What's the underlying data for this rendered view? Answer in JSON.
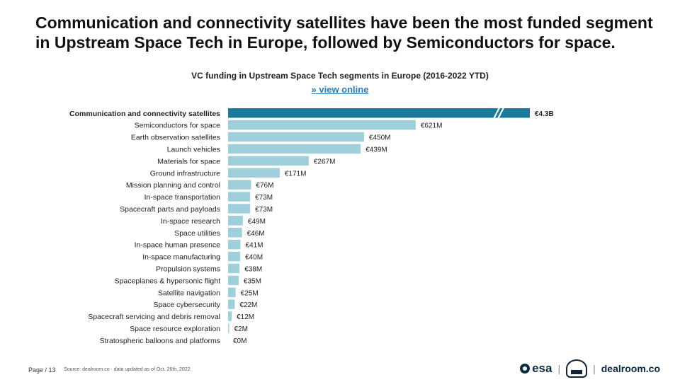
{
  "headline": {
    "line1": "Communication and connectivity satellites have been the most funded segment",
    "line2": "in Upstream Space Tech in Europe, followed by Semiconductors for space."
  },
  "chart_header": {
    "title": "VC funding in Upstream Space Tech segments in Europe (2016-2022 YTD)",
    "link": "» view online"
  },
  "chart_data": {
    "type": "bar",
    "orientation": "horizontal",
    "unit": "€M",
    "axis_break": true,
    "categories": [
      "Communication and connectivity satellites",
      "Semiconductors for space",
      "Earth observation satellites",
      "Launch vehicles",
      "Materials for space",
      "Ground infrastructure",
      "Mission planning and control",
      "In-space transportation",
      "Spacecraft parts and payloads",
      "In-space research",
      "Space utilities",
      "In-space human presence",
      "In-space manufacturing",
      "Propulsion systems",
      "Spaceplanes & hypersonic flight",
      "Satellite navigation",
      "Space cybersecurity",
      "Spacecraft servicing and debris removal",
      "Space resource exploration",
      "Stratospheric balloons and platforms"
    ],
    "values": [
      4300,
      621,
      450,
      439,
      267,
      171,
      76,
      73,
      73,
      49,
      46,
      41,
      40,
      38,
      35,
      25,
      22,
      12,
      2,
      0
    ],
    "labels": [
      "€4.3B",
      "€621M",
      "€450M",
      "€439M",
      "€267M",
      "€171M",
      "€76M",
      "€73M",
      "€73M",
      "€49M",
      "€46M",
      "€41M",
      "€40M",
      "€38M",
      "€35M",
      "€25M",
      "€22M",
      "€12M",
      "€2M",
      "€0M"
    ],
    "highlight_index": 0,
    "colors": {
      "highlight": "#1b7a99",
      "default": "#9fcfdb"
    }
  },
  "footer": {
    "page": "Page / 13",
    "source": "Source: dealroom.co · data updated as of Oct. 26th, 2022",
    "logo_esa": "esa",
    "separator": "|",
    "logo_dealroom": "dealroom.co"
  }
}
